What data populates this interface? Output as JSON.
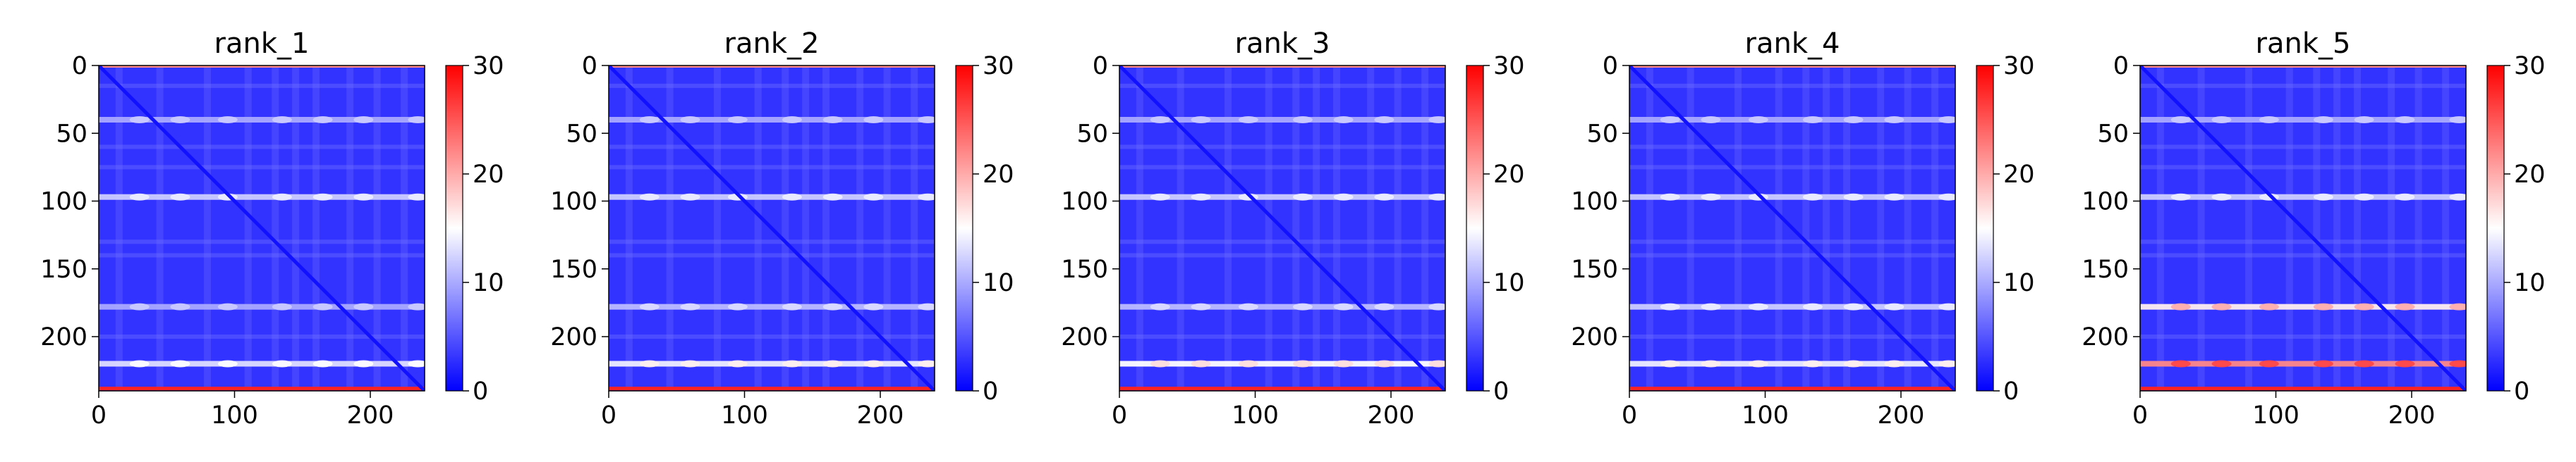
{
  "chart_data": [
    {
      "type": "heatmap",
      "title": "rank_1",
      "xlim": [
        0,
        240
      ],
      "ylim": [
        240,
        0
      ],
      "xticks": [
        0,
        100,
        200
      ],
      "yticks": [
        0,
        50,
        100,
        150,
        200
      ],
      "colorbar": {
        "min": 0,
        "max": 30,
        "ticks": [
          0,
          10,
          20,
          30
        ],
        "colormap": "bwr"
      },
      "bright_rows": [
        {
          "y": 40,
          "v": 10
        },
        {
          "y": 97,
          "v": 12
        },
        {
          "y": 178,
          "v": 10
        },
        {
          "y": 220,
          "v": 13
        }
      ],
      "edge_row": {
        "y": 238,
        "v": 28
      },
      "diagonal_value": 1,
      "background_value": 3
    },
    {
      "type": "heatmap",
      "title": "rank_2",
      "xlim": [
        0,
        240
      ],
      "ylim": [
        240,
        0
      ],
      "xticks": [
        0,
        100,
        200
      ],
      "yticks": [
        0,
        50,
        100,
        150,
        200
      ],
      "colorbar": {
        "min": 0,
        "max": 30,
        "ticks": [
          0,
          10,
          20,
          30
        ],
        "colormap": "bwr"
      },
      "bright_rows": [
        {
          "y": 40,
          "v": 10
        },
        {
          "y": 97,
          "v": 12
        },
        {
          "y": 178,
          "v": 11
        },
        {
          "y": 220,
          "v": 14
        }
      ],
      "edge_row": {
        "y": 238,
        "v": 28
      },
      "diagonal_value": 1,
      "background_value": 3
    },
    {
      "type": "heatmap",
      "title": "rank_3",
      "xlim": [
        0,
        240
      ],
      "ylim": [
        240,
        0
      ],
      "xticks": [
        0,
        100,
        200
      ],
      "yticks": [
        0,
        50,
        100,
        150,
        200
      ],
      "colorbar": {
        "min": 0,
        "max": 30,
        "ticks": [
          0,
          10,
          20,
          30
        ],
        "colormap": "bwr"
      },
      "bright_rows": [
        {
          "y": 40,
          "v": 10
        },
        {
          "y": 97,
          "v": 12
        },
        {
          "y": 178,
          "v": 11
        },
        {
          "y": 220,
          "v": 15
        }
      ],
      "edge_row": {
        "y": 238,
        "v": 28
      },
      "diagonal_value": 1,
      "background_value": 3
    },
    {
      "type": "heatmap",
      "title": "rank_4",
      "xlim": [
        0,
        240
      ],
      "ylim": [
        240,
        0
      ],
      "xticks": [
        0,
        100,
        200
      ],
      "yticks": [
        0,
        50,
        100,
        150,
        200
      ],
      "colorbar": {
        "min": 0,
        "max": 30,
        "ticks": [
          0,
          10,
          20,
          30
        ],
        "colormap": "bwr"
      },
      "bright_rows": [
        {
          "y": 40,
          "v": 10
        },
        {
          "y": 97,
          "v": 12
        },
        {
          "y": 178,
          "v": 12
        },
        {
          "y": 220,
          "v": 14
        }
      ],
      "edge_row": {
        "y": 238,
        "v": 28
      },
      "diagonal_value": 1,
      "background_value": 3
    },
    {
      "type": "heatmap",
      "title": "rank_5",
      "xlim": [
        0,
        240
      ],
      "ylim": [
        240,
        0
      ],
      "xticks": [
        0,
        100,
        200
      ],
      "yticks": [
        0,
        50,
        100,
        150,
        200
      ],
      "colorbar": {
        "min": 0,
        "max": 30,
        "ticks": [
          0,
          10,
          20,
          30
        ],
        "colormap": "bwr"
      },
      "bright_rows": [
        {
          "y": 40,
          "v": 10
        },
        {
          "y": 97,
          "v": 12
        },
        {
          "y": 178,
          "v": 16
        },
        {
          "y": 220,
          "v": 22
        }
      ],
      "edge_row": {
        "y": 238,
        "v": 28
      },
      "diagonal_value": 1,
      "background_value": 3
    }
  ]
}
